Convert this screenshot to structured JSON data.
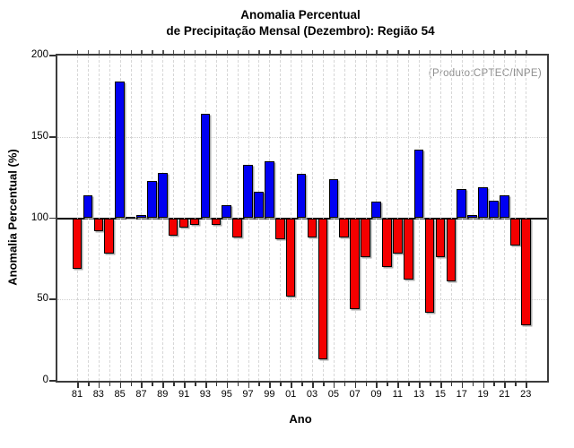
{
  "title": {
    "line1": "Anomalia Percentual",
    "line2": "de Precipitação Mensal (Dezembro): Região 54"
  },
  "annotation": "(Produto:CPTEC/INPE)",
  "chart_data": {
    "type": "bar",
    "title": "Anomalia Percentual de Precipitação Mensal (Dezembro): Região 54",
    "xlabel": "Ano",
    "ylabel": "Anomalia Percentual (%)",
    "ylim": [
      0,
      200
    ],
    "yticks": [
      0,
      50,
      100,
      150,
      200
    ],
    "baseline": 100,
    "legend_position": "none",
    "grid": "vertical dashed line per year; dotted horizontal at 50 and 150; solid black line at 100",
    "categories": [
      "81",
      "82",
      "83",
      "84",
      "85",
      "86",
      "87",
      "88",
      "89",
      "90",
      "91",
      "92",
      "93",
      "94",
      "95",
      "96",
      "97",
      "98",
      "99",
      "00",
      "01",
      "02",
      "03",
      "04",
      "05",
      "06",
      "07",
      "08",
      "09",
      "10",
      "11",
      "12",
      "13",
      "14",
      "15",
      "16",
      "17",
      "18",
      "19",
      "20",
      "21",
      "22",
      "23"
    ],
    "labeled_ticks": [
      "81",
      "83",
      "85",
      "87",
      "89",
      "91",
      "93",
      "95",
      "97",
      "99",
      "01",
      "03",
      "05",
      "07",
      "09",
      "11",
      "13",
      "15",
      "17",
      "19",
      "21",
      "23"
    ],
    "values": [
      69,
      114,
      92,
      78,
      184,
      100,
      102,
      123,
      128,
      89,
      94,
      96,
      164,
      96,
      108,
      88,
      133,
      116,
      135,
      87,
      52,
      127,
      88,
      13,
      124,
      88,
      44,
      76,
      110,
      70,
      78,
      62,
      142,
      42,
      76,
      61,
      118,
      102,
      119,
      111,
      114,
      83,
      34
    ],
    "color_above_baseline": "#0000f2",
    "color_below_baseline": "#f40000",
    "bar_outline": "#000000"
  }
}
